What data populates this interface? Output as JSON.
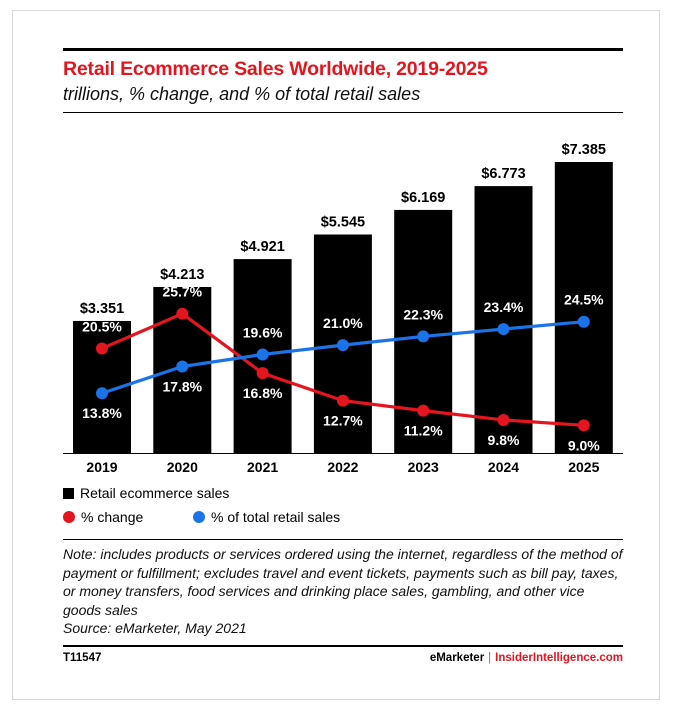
{
  "title": "Retail Ecommerce Sales Worldwide, 2019-2025",
  "subtitle": "trillions, % change, and % of total retail sales",
  "colors": {
    "bar": "#000000",
    "change": "#e4151f",
    "share": "#1a73e8",
    "title": "#e4151f"
  },
  "chart_data": {
    "type": "bar",
    "categories": [
      "2019",
      "2020",
      "2021",
      "2022",
      "2023",
      "2024",
      "2025"
    ],
    "series": [
      {
        "name": "Retail ecommerce sales",
        "type": "bar",
        "values": [
          3.351,
          4.213,
          4.921,
          5.545,
          6.169,
          6.773,
          7.385
        ],
        "labels": [
          "$3.351",
          "$4.213",
          "$4.921",
          "$5.545",
          "$6.169",
          "$6.773",
          "$7.385"
        ]
      },
      {
        "name": "% change",
        "type": "line",
        "values": [
          20.5,
          25.7,
          16.8,
          12.7,
          11.2,
          9.8,
          9.0
        ],
        "labels": [
          "20.5%",
          "25.7%",
          "16.8%",
          "12.7%",
          "11.2%",
          "9.8%",
          "9.0%"
        ]
      },
      {
        "name": "% of total retail sales",
        "type": "line",
        "values": [
          13.8,
          17.8,
          19.6,
          21.0,
          22.3,
          23.4,
          24.5
        ],
        "labels": [
          "13.8%",
          "17.8%",
          "19.6%",
          "21.0%",
          "22.3%",
          "23.4%",
          "24.5%"
        ]
      }
    ],
    "title": "Retail Ecommerce Sales Worldwide, 2019-2025",
    "subtitle": "trillions, % change, and % of total retail sales",
    "xlabel": "",
    "ylabel": "",
    "ylim": [
      0,
      7.385
    ],
    "grid": false,
    "legend": "bottom-left"
  },
  "legend": {
    "bars": "Retail ecommerce sales",
    "change": "% change",
    "share": "% of total retail sales"
  },
  "note": {
    "text": "Note: includes products or services ordered using the internet, regardless of the method of payment or fulfillment; excludes travel and event tickets, payments such as bill pay, taxes, or money transfers, food services and drinking place sales, gambling, and other vice goods sales",
    "source": "Source: eMarketer, May 2021"
  },
  "footer": {
    "id": "T11547",
    "brand_a": "eMarketer",
    "separator": "|",
    "brand_b": "InsiderIntelligence.com"
  }
}
